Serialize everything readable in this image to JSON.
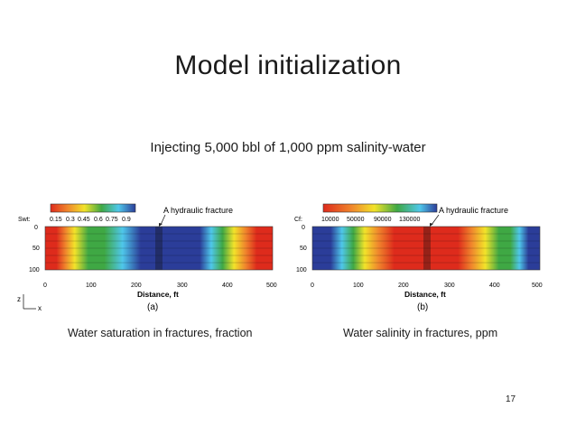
{
  "slide": {
    "title": "Model initialization",
    "subtitle": "Injecting 5,000 bbl of 1,000 ppm salinity-water",
    "page_number": "17"
  },
  "colors": {
    "blue": "#2b3d99",
    "cyan": "#4fc7ea",
    "green": "#3fa844",
    "yellow": "#f2e32a",
    "orange": "#f0862c",
    "red": "#de2b1c"
  },
  "panels": [
    {
      "id": "a",
      "legend_var": "Swt:",
      "legend_ticks": [
        "0.15",
        "0.3",
        "0.45",
        "0.6",
        "0.75",
        "0.9"
      ],
      "annotation": "A hydraulic fracture",
      "y_ticks": [
        "0",
        "50",
        "100"
      ],
      "x_ticks": [
        "0",
        "100",
        "200",
        "300",
        "400",
        "500"
      ],
      "x_label": "Distance, ft",
      "panel_label": "(a)",
      "caption": "Water saturation in fractures, fraction",
      "axis_z": "z",
      "axis_x": "x"
    },
    {
      "id": "b",
      "legend_var": "Cf:",
      "legend_ticks": [
        "10000",
        "50000",
        "90000",
        "130000"
      ],
      "annotation": "A hydraulic fracture",
      "y_ticks": [
        "0",
        "50",
        "100"
      ],
      "x_ticks": [
        "0",
        "100",
        "200",
        "300",
        "400",
        "500"
      ],
      "x_label": "Distance, ft",
      "panel_label": "(b)",
      "caption": "Water salinity in fractures, ppm"
    }
  ]
}
